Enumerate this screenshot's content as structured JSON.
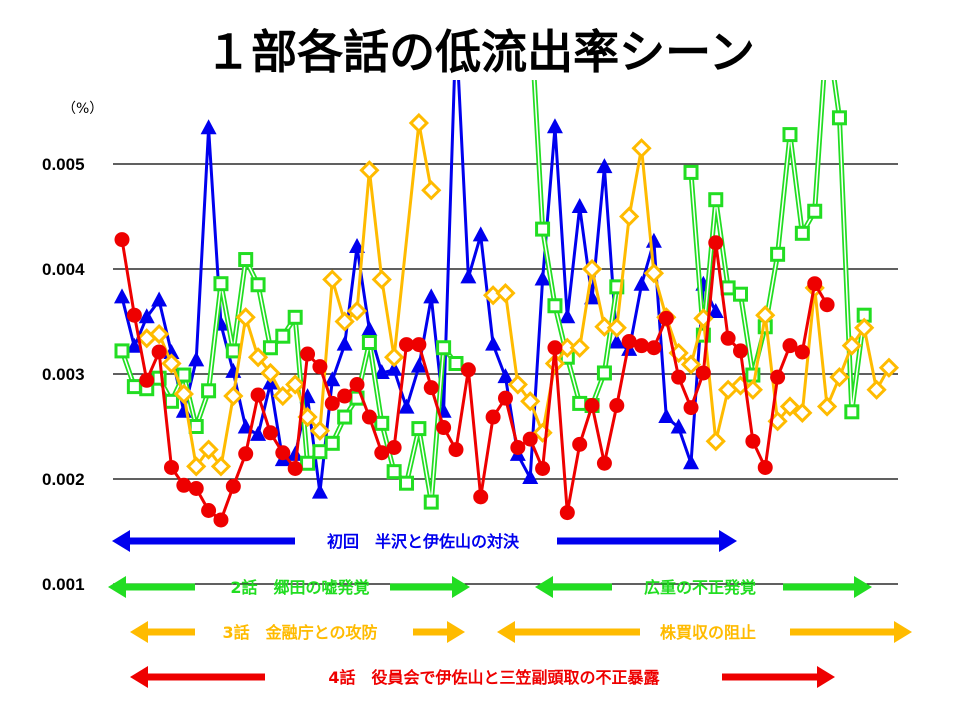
{
  "chart_data": {
    "type": "line",
    "title": "１部各話の低流出率シーン",
    "ylabel": "（%）",
    "ylim": [
      0.001,
      0.0058
    ],
    "yticks": [
      "0.001",
      "0.002",
      "0.003",
      "0.004",
      "0.005"
    ],
    "ytick_values": [
      0.001,
      0.002,
      0.003,
      0.004,
      0.005
    ],
    "x_label": "",
    "xlim": [
      0,
      63
    ],
    "grid": true,
    "series": [
      {
        "name": "初回",
        "color": "#0000ee",
        "marker": "triangle",
        "points": [
          [
            0,
            0.00373
          ],
          [
            1,
            0.00326
          ],
          [
            2,
            0.00354
          ],
          [
            3,
            0.0037
          ],
          [
            4,
            0.0032
          ],
          [
            5,
            0.00264
          ],
          [
            6,
            0.00313
          ],
          [
            7,
            0.00534
          ],
          [
            8,
            0.00347
          ],
          [
            9,
            0.00302
          ],
          [
            10,
            0.00249
          ],
          [
            11,
            0.00242
          ],
          [
            12,
            0.00291
          ],
          [
            13,
            0.00218
          ],
          [
            14,
            0.00223
          ],
          [
            15,
            0.00278
          ],
          [
            16,
            0.00187
          ],
          [
            17,
            0.00294
          ],
          [
            18,
            0.00328
          ],
          [
            19,
            0.00421
          ],
          [
            20,
            0.00342
          ],
          [
            21,
            0.00301
          ],
          [
            22,
            0.00304
          ],
          [
            23,
            0.00268
          ],
          [
            24,
            0.00307
          ],
          [
            25,
            0.00373
          ],
          [
            26,
            0.00264
          ],
          [
            27,
            0.0063
          ],
          [
            28,
            0.00392
          ],
          [
            29,
            0.00432
          ],
          [
            30,
            0.00328
          ],
          [
            31,
            0.00297
          ],
          [
            32,
            0.00223
          ],
          [
            33,
            0.00201
          ],
          [
            34,
            0.0039
          ],
          [
            35,
            0.00535
          ],
          [
            36,
            0.00354
          ],
          [
            37,
            0.00459
          ],
          [
            38,
            0.00372
          ],
          [
            39,
            0.00497
          ],
          [
            40,
            0.0033
          ],
          [
            41,
            0.00323
          ],
          [
            42,
            0.00385
          ],
          [
            43,
            0.00426
          ],
          [
            44,
            0.00259
          ],
          [
            45,
            0.00249
          ],
          [
            46,
            0.00215
          ],
          [
            47,
            0.00385
          ],
          [
            48,
            0.00359
          ]
        ]
      },
      {
        "name": "2話",
        "color": "#22dd22",
        "marker": "square",
        "points": [
          [
            0,
            0.00322
          ],
          [
            1,
            0.00288
          ],
          [
            2,
            0.00286
          ],
          [
            3,
            0.00296
          ],
          [
            4,
            0.00274
          ],
          [
            5,
            0.00299
          ],
          [
            6,
            0.0025
          ],
          [
            7,
            0.00284
          ],
          [
            8,
            0.00386
          ],
          [
            9,
            0.00322
          ],
          [
            10,
            0.00409
          ],
          [
            11,
            0.00385
          ],
          [
            12,
            0.00325
          ],
          [
            13,
            0.00336
          ],
          [
            14,
            0.00354
          ],
          [
            15,
            0.00215
          ],
          [
            16,
            0.00226
          ],
          [
            17,
            0.00234
          ],
          [
            18,
            0.00259
          ],
          [
            19,
            0.00277
          ],
          [
            20,
            0.0033
          ],
          [
            21,
            0.00253
          ],
          [
            22,
            0.00207
          ],
          [
            23,
            0.00196
          ],
          [
            24,
            0.00248
          ],
          [
            25,
            0.00178
          ],
          [
            26,
            0.00325
          ],
          [
            27,
            0.0031
          ],
          null,
          [
            33,
            0.0065
          ],
          [
            34,
            0.00438
          ],
          [
            35,
            0.00365
          ],
          [
            36,
            0.00316
          ],
          [
            37,
            0.00272
          ],
          [
            38,
            0.0027
          ],
          [
            39,
            0.00301
          ],
          [
            40,
            0.00383
          ],
          null,
          [
            46,
            0.00492
          ],
          [
            47,
            0.00337
          ],
          [
            48,
            0.00466
          ],
          [
            49,
            0.00382
          ],
          [
            50,
            0.00376
          ],
          [
            51,
            0.00299
          ],
          [
            52,
            0.00345
          ],
          [
            53,
            0.00414
          ],
          [
            54,
            0.00528
          ],
          [
            55,
            0.00434
          ],
          [
            56,
            0.00455
          ],
          [
            57,
            0.0063
          ],
          [
            58,
            0.00544
          ],
          [
            59,
            0.00264
          ],
          [
            60,
            0.00356
          ]
        ]
      },
      {
        "name": "3話",
        "color": "#ffbb00",
        "marker": "diamond",
        "points": [
          [
            2,
            0.00334
          ],
          [
            3,
            0.00338
          ],
          [
            4,
            0.0031
          ],
          [
            5,
            0.00281
          ],
          [
            6,
            0.00212
          ],
          [
            7,
            0.00228
          ],
          [
            8,
            0.00212
          ],
          [
            9,
            0.00279
          ],
          [
            10,
            0.00354
          ],
          [
            11,
            0.00316
          ],
          [
            12,
            0.00301
          ],
          [
            13,
            0.00279
          ],
          [
            14,
            0.0029
          ],
          [
            15,
            0.00259
          ],
          [
            16,
            0.00246
          ],
          [
            17,
            0.0039
          ],
          [
            18,
            0.0035
          ],
          [
            19,
            0.0036
          ],
          [
            20,
            0.00494
          ],
          [
            21,
            0.0039
          ],
          [
            22,
            0.00316
          ],
          [
            24,
            0.00539
          ],
          [
            25,
            0.00475
          ],
          null,
          [
            30,
            0.00375
          ],
          [
            31,
            0.00377
          ],
          [
            32,
            0.0029
          ],
          [
            33,
            0.00274
          ],
          [
            34,
            0.00244
          ],
          [
            35,
            0.0031
          ],
          [
            36,
            0.00325
          ],
          [
            37,
            0.00325
          ],
          [
            38,
            0.004
          ],
          [
            39,
            0.00345
          ],
          [
            40,
            0.00344
          ],
          [
            41,
            0.0045
          ],
          [
            42,
            0.00515
          ],
          [
            43,
            0.00396
          ],
          [
            44,
            0.00354
          ],
          [
            45,
            0.0032
          ],
          [
            46,
            0.00309
          ],
          [
            47,
            0.00353
          ],
          [
            48,
            0.00236
          ],
          [
            49,
            0.00285
          ],
          [
            50,
            0.00289
          ],
          [
            51,
            0.00285
          ],
          [
            52,
            0.00356
          ],
          [
            53,
            0.00255
          ],
          [
            54,
            0.00269
          ],
          [
            55,
            0.00263
          ],
          [
            56,
            0.00382
          ],
          [
            57,
            0.00269
          ],
          [
            58,
            0.00297
          ],
          [
            59,
            0.00327
          ],
          [
            60,
            0.00344
          ],
          [
            61,
            0.00285
          ],
          [
            62,
            0.00306
          ]
        ]
      },
      {
        "name": "4話",
        "color": "#ee0000",
        "marker": "circle",
        "points": [
          [
            0,
            0.00428
          ],
          [
            1,
            0.00356
          ],
          [
            2,
            0.00294
          ],
          [
            3,
            0.00321
          ],
          [
            4,
            0.00211
          ],
          [
            5,
            0.00194
          ],
          [
            6,
            0.00191
          ],
          [
            7,
            0.0017
          ],
          [
            8,
            0.00161
          ],
          [
            9,
            0.00193
          ],
          [
            10,
            0.00224
          ],
          [
            11,
            0.0028
          ],
          [
            12,
            0.00244
          ],
          [
            13,
            0.00225
          ],
          [
            14,
            0.0021
          ],
          [
            15,
            0.00319
          ],
          [
            16,
            0.00307
          ],
          [
            17,
            0.00272
          ],
          [
            18,
            0.00279
          ],
          [
            19,
            0.0029
          ],
          [
            20,
            0.00259
          ],
          [
            21,
            0.00225
          ],
          [
            22,
            0.0023
          ],
          [
            23,
            0.00328
          ],
          [
            24,
            0.00328
          ],
          [
            25,
            0.00287
          ],
          [
            26,
            0.00249
          ],
          [
            27,
            0.00228
          ],
          [
            28,
            0.00304
          ],
          [
            29,
            0.00183
          ],
          [
            30,
            0.00259
          ],
          [
            31,
            0.00277
          ],
          [
            32,
            0.0023
          ],
          [
            33,
            0.00238
          ],
          [
            34,
            0.0021
          ],
          [
            35,
            0.00325
          ],
          [
            36,
            0.00168
          ],
          [
            37,
            0.00233
          ],
          [
            38,
            0.0027
          ],
          [
            39,
            0.00215
          ],
          [
            40,
            0.0027
          ],
          [
            41,
            0.00331
          ],
          [
            42,
            0.00327
          ],
          [
            43,
            0.00325
          ],
          [
            44,
            0.00353
          ],
          [
            45,
            0.00297
          ],
          [
            46,
            0.00268
          ],
          [
            47,
            0.00301
          ],
          [
            48,
            0.00425
          ],
          [
            49,
            0.00334
          ],
          [
            50,
            0.00322
          ],
          [
            51,
            0.00236
          ],
          [
            52,
            0.00211
          ],
          [
            53,
            0.00297
          ],
          [
            54,
            0.00327
          ],
          [
            55,
            0.00321
          ],
          [
            56,
            0.00386
          ],
          [
            57,
            0.00366
          ]
        ]
      }
    ],
    "annotations": {
      "ep1": {
        "label": "初回　半沢と伊佐山の対決",
        "color": "#0000ee"
      },
      "ep2": {
        "label": "2話　郷田の嘘発覚",
        "color": "#22dd22"
      },
      "ep2b": {
        "label": "広重の不正発覚",
        "color": "#22dd22"
      },
      "ep3": {
        "label": "3話　金融庁との攻防",
        "color": "#ffbb00"
      },
      "ep3b": {
        "label": "株買収の阻止",
        "color": "#ffbb00"
      },
      "ep4": {
        "label": "4話　役員会で伊佐山と三笠副頭取の不正暴露",
        "color": "#ee0000"
      }
    }
  }
}
